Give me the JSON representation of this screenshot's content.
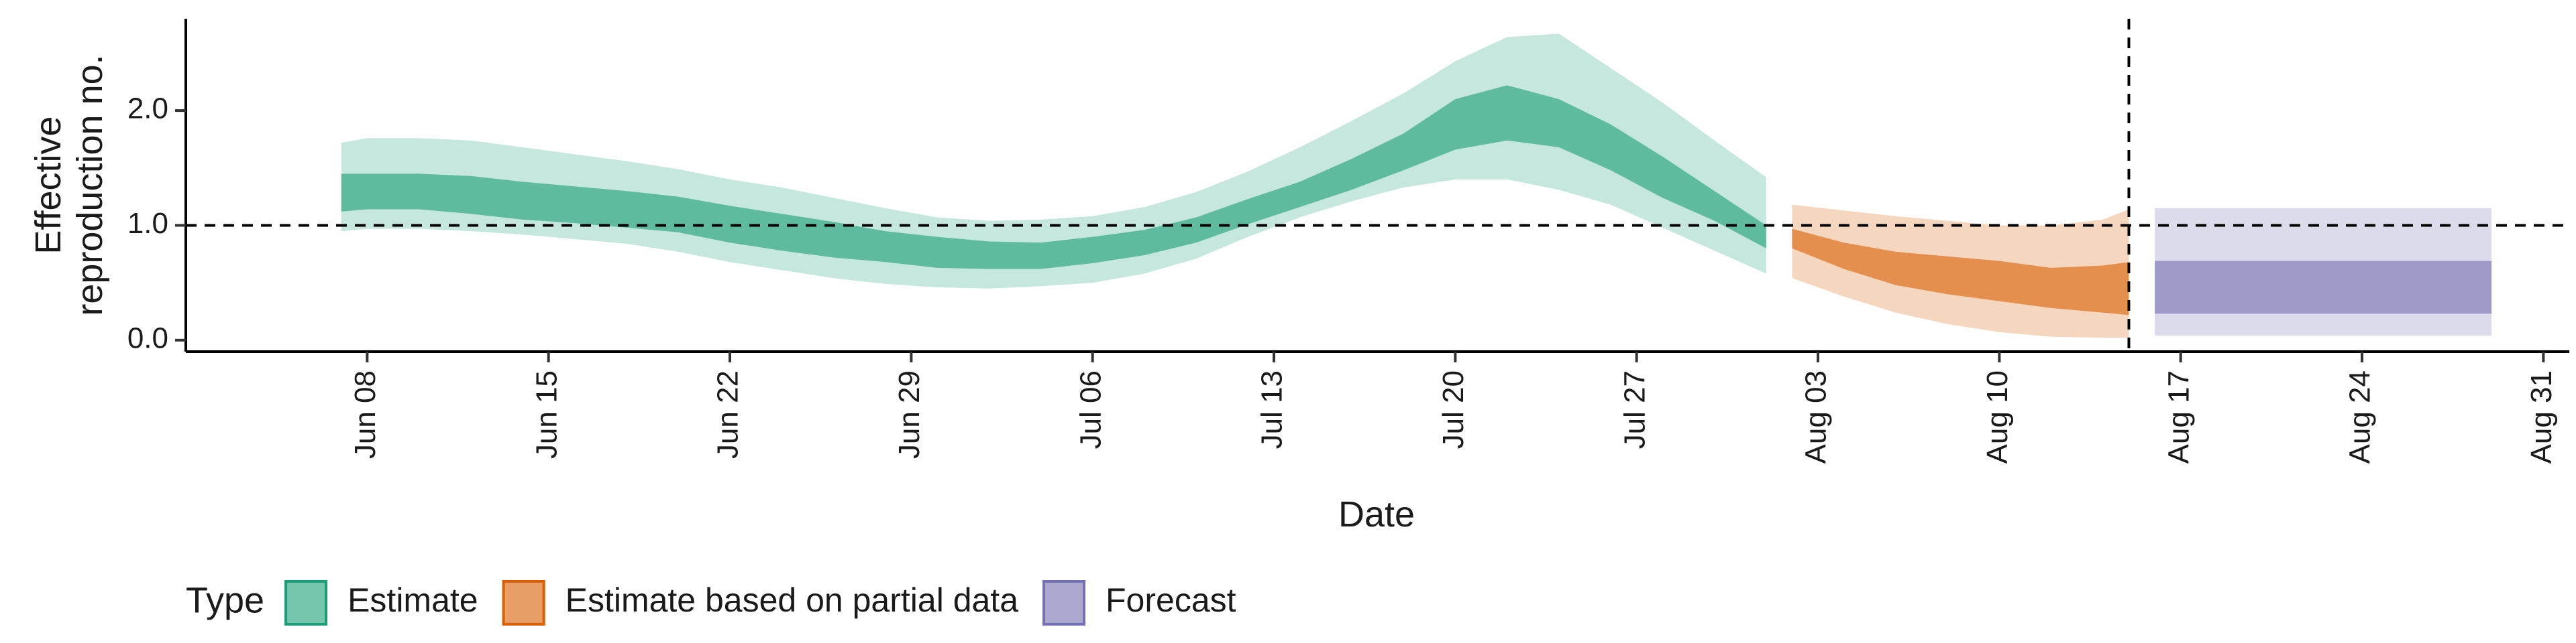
{
  "chart_data": {
    "type": "area",
    "xlabel": "Date",
    "ylabel": [
      "Effective",
      "reproduction no."
    ],
    "xlim": [
      "2020-06-01",
      "2020-09-01"
    ],
    "ylim": [
      -0.1,
      2.8
    ],
    "x_ticks": [
      "2020-06-08",
      "2020-06-15",
      "2020-06-22",
      "2020-06-29",
      "2020-07-06",
      "2020-07-13",
      "2020-07-20",
      "2020-07-27",
      "2020-08-03",
      "2020-08-10",
      "2020-08-17",
      "2020-08-24",
      "2020-08-31"
    ],
    "x_tick_labels": [
      "Jun 08",
      "Jun 15",
      "Jun 22",
      "Jun 29",
      "Jul 06",
      "Jul 13",
      "Jul 20",
      "Jul 27",
      "Aug 03",
      "Aug 10",
      "Aug 17",
      "Aug 24",
      "Aug 31"
    ],
    "y_ticks": [
      0.0,
      1.0,
      2.0
    ],
    "y_tick_labels": [
      "0.0",
      "1.0",
      "2.0"
    ],
    "reference_line_y": 1.0,
    "reference_line_x": "2020-08-15",
    "grid": false,
    "legend": {
      "title": "Type",
      "position": "bottom",
      "entries": [
        {
          "label": "Estimate",
          "color": "#1b9e77"
        },
        {
          "label": "Estimate based on partial data",
          "color": "#d95f02"
        },
        {
          "label": "Forecast",
          "color": "#7570b3"
        }
      ]
    },
    "series": [
      {
        "type_label": "Estimate",
        "color": "#1b9e77",
        "x": [
          "2020-06-07",
          "2020-06-08",
          "2020-06-10",
          "2020-06-12",
          "2020-06-14",
          "2020-06-16",
          "2020-06-18",
          "2020-06-20",
          "2020-06-22",
          "2020-06-24",
          "2020-06-26",
          "2020-06-28",
          "2020-06-30",
          "2020-07-02",
          "2020-07-04",
          "2020-07-06",
          "2020-07-08",
          "2020-07-10",
          "2020-07-12",
          "2020-07-14",
          "2020-07-16",
          "2020-07-18",
          "2020-07-20",
          "2020-07-22",
          "2020-07-24",
          "2020-07-26",
          "2020-07-28",
          "2020-07-30",
          "2020-08-01"
        ],
        "outer_upper": [
          1.72,
          1.76,
          1.76,
          1.74,
          1.68,
          1.62,
          1.56,
          1.49,
          1.4,
          1.33,
          1.24,
          1.15,
          1.07,
          1.04,
          1.05,
          1.08,
          1.16,
          1.29,
          1.47,
          1.68,
          1.91,
          2.15,
          2.43,
          2.64,
          2.67,
          2.37,
          2.07,
          1.74,
          1.42
        ],
        "inner_upper": [
          1.45,
          1.45,
          1.45,
          1.43,
          1.38,
          1.34,
          1.3,
          1.25,
          1.17,
          1.1,
          1.03,
          0.95,
          0.9,
          0.86,
          0.85,
          0.9,
          0.96,
          1.07,
          1.23,
          1.38,
          1.58,
          1.8,
          2.1,
          2.22,
          2.1,
          1.88,
          1.6,
          1.3,
          1.0
        ],
        "inner_lower": [
          1.12,
          1.14,
          1.14,
          1.1,
          1.05,
          1.02,
          0.98,
          0.94,
          0.85,
          0.78,
          0.72,
          0.68,
          0.63,
          0.62,
          0.62,
          0.67,
          0.74,
          0.85,
          1.01,
          1.16,
          1.31,
          1.48,
          1.66,
          1.74,
          1.68,
          1.48,
          1.24,
          1.04,
          0.8
        ],
        "outer_lower": [
          0.95,
          0.97,
          0.97,
          0.95,
          0.92,
          0.88,
          0.84,
          0.77,
          0.68,
          0.61,
          0.54,
          0.49,
          0.46,
          0.45,
          0.47,
          0.5,
          0.58,
          0.71,
          0.9,
          1.07,
          1.21,
          1.33,
          1.4,
          1.4,
          1.31,
          1.18,
          0.98,
          0.78,
          0.58
        ]
      },
      {
        "type_label": "Estimate based on partial data",
        "color": "#d95f02",
        "x": [
          "2020-08-02",
          "2020-08-04",
          "2020-08-06",
          "2020-08-08",
          "2020-08-10",
          "2020-08-12",
          "2020-08-14",
          "2020-08-15"
        ],
        "outer_upper": [
          1.18,
          1.13,
          1.08,
          1.04,
          1.0,
          1.0,
          1.05,
          1.14
        ],
        "inner_upper": [
          0.97,
          0.85,
          0.77,
          0.73,
          0.69,
          0.63,
          0.65,
          0.68
        ],
        "inner_lower": [
          0.8,
          0.62,
          0.48,
          0.4,
          0.34,
          0.28,
          0.24,
          0.22
        ],
        "outer_lower": [
          0.54,
          0.38,
          0.24,
          0.14,
          0.07,
          0.03,
          0.02,
          0.02
        ]
      },
      {
        "type_label": "Forecast",
        "color": "#7570b3",
        "x": [
          "2020-08-16",
          "2020-08-29"
        ],
        "outer_upper": [
          1.15,
          1.15
        ],
        "inner_upper": [
          0.69,
          0.69
        ],
        "inner_lower": [
          0.23,
          0.23
        ],
        "outer_lower": [
          0.04,
          0.04
        ]
      }
    ]
  }
}
